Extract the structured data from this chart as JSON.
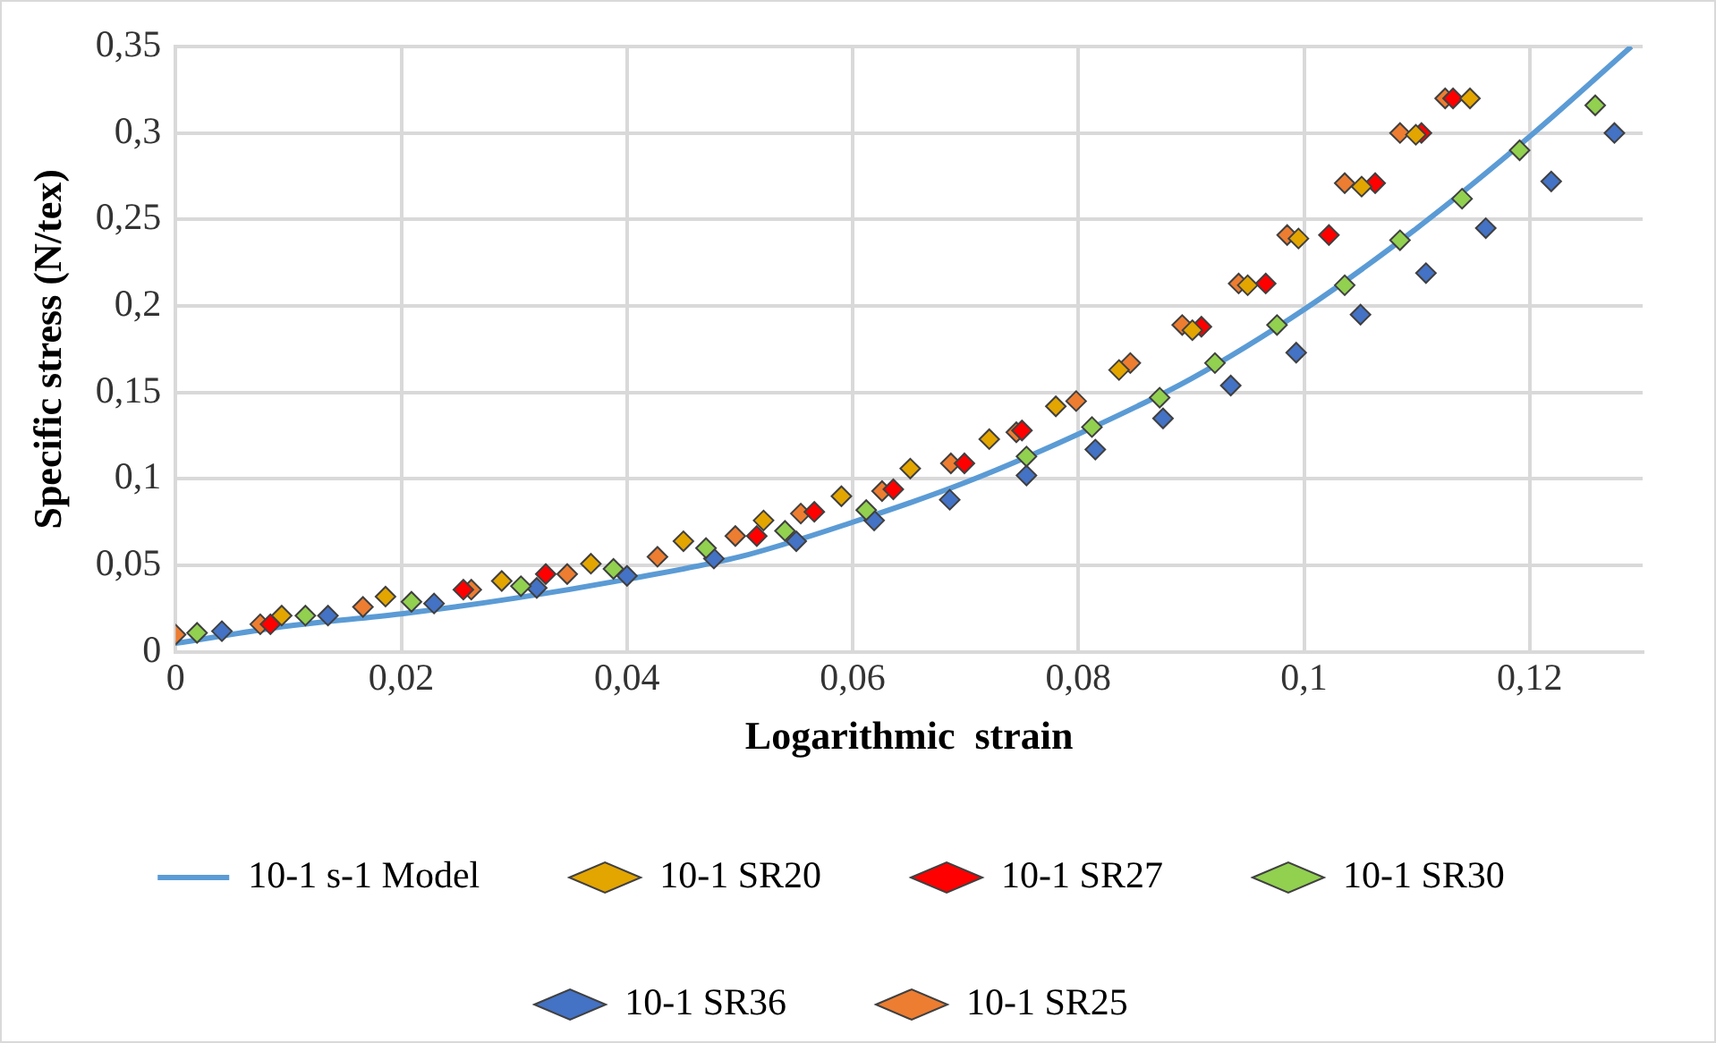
{
  "chart_data": {
    "type": "scatter",
    "xlabel": "Logarithmic  strain",
    "ylabel": "Specific stress (N/tex)",
    "xlim": [
      0,
      0.13
    ],
    "ylim": [
      0,
      0.35
    ],
    "xticks": [
      0,
      {
        "value": 0.02,
        "label": "0,02"
      },
      {
        "value": 0.04,
        "label": "0,04"
      },
      {
        "value": 0.06,
        "label": "0,06"
      },
      {
        "value": 0.08,
        "label": "0,08"
      },
      {
        "value": 0.1,
        "label": "0,1"
      },
      {
        "value": 0.12,
        "label": "0,12"
      }
    ],
    "yticks": [
      0,
      {
        "value": 0.05,
        "label": "0,05"
      },
      {
        "value": 0.1,
        "label": "0,1"
      },
      {
        "value": 0.15,
        "label": "0,15"
      },
      {
        "value": 0.2,
        "label": "0,2"
      },
      {
        "value": 0.25,
        "label": "0,25"
      },
      {
        "value": 0.3,
        "label": "0,3"
      },
      {
        "value": 0.35,
        "label": "0,35"
      }
    ],
    "grid": true,
    "legend": "bottom",
    "marker": "diamond",
    "series": [
      {
        "name": "10-1 s-1 Model",
        "type": "line",
        "marker": "none",
        "line_style": "solid",
        "color": "#5b9bd5",
        "x": [
          0,
          0.01,
          0.02,
          0.03,
          0.04,
          0.05,
          0.06,
          0.07,
          0.08,
          0.09,
          0.1,
          0.11,
          0.12,
          0.129
        ],
        "values": [
          0.005,
          0.015,
          0.022,
          0.031,
          0.042,
          0.055,
          0.075,
          0.098,
          0.126,
          0.158,
          0.198,
          0.245,
          0.298,
          0.35
        ]
      },
      {
        "name": "10-1 SR20",
        "color": "#e3a500",
        "x": [
          0.0094,
          0.0186,
          0.0289,
          0.0368,
          0.045,
          0.0521,
          0.059,
          0.0651,
          0.0721,
          0.078,
          0.0836,
          0.0901,
          0.095,
          0.0995,
          0.1051,
          0.1099,
          0.1147
        ],
        "values": [
          0.021,
          0.032,
          0.041,
          0.051,
          0.064,
          0.076,
          0.09,
          0.106,
          0.123,
          0.142,
          0.163,
          0.186,
          0.212,
          0.239,
          0.269,
          0.299,
          0.32
        ]
      },
      {
        "name": "10-1 SR27",
        "color": "#ff0000",
        "x": [
          0.0084,
          0.0255,
          0.0328,
          0.0515,
          0.0566,
          0.0636,
          0.0699,
          0.075,
          0.0909,
          0.0966,
          0.1022,
          0.1063,
          0.1104,
          0.1132
        ],
        "values": [
          0.016,
          0.036,
          0.045,
          0.067,
          0.081,
          0.094,
          0.109,
          0.128,
          0.188,
          0.213,
          0.241,
          0.271,
          0.3,
          0.32
        ]
      },
      {
        "name": "10-1 SR30",
        "color": "#92d050",
        "x": [
          0.0019,
          0.0115,
          0.0209,
          0.0306,
          0.0388,
          0.047,
          0.054,
          0.0612,
          0.0754,
          0.0812,
          0.0872,
          0.0921,
          0.0976,
          0.1036,
          0.1085,
          0.114,
          0.1191,
          0.1258
        ],
        "values": [
          0.011,
          0.021,
          0.029,
          0.038,
          0.048,
          0.06,
          0.07,
          0.082,
          0.113,
          0.13,
          0.147,
          0.167,
          0.189,
          0.212,
          0.238,
          0.262,
          0.29,
          0.316
        ]
      },
      {
        "name": "10-1 SR36",
        "color": "#4472c4",
        "x": [
          0.0041,
          0.0135,
          0.0229,
          0.032,
          0.04,
          0.0477,
          0.055,
          0.0619,
          0.0686,
          0.0754,
          0.0815,
          0.0875,
          0.0935,
          0.0993,
          0.105,
          0.1108,
          0.1161,
          0.1219,
          0.1275
        ],
        "values": [
          0.012,
          0.021,
          0.028,
          0.037,
          0.044,
          0.054,
          0.064,
          0.076,
          0.088,
          0.102,
          0.117,
          0.135,
          0.154,
          0.173,
          0.195,
          0.219,
          0.245,
          0.272,
          0.3
        ]
      },
      {
        "name": "10-1 SR25",
        "color": "#ed7d31",
        "x": [
          0,
          0.0075,
          0.0166,
          0.0262,
          0.0347,
          0.0427,
          0.0496,
          0.0554,
          0.0626,
          0.0687,
          0.0745,
          0.0798,
          0.0846,
          0.0892,
          0.0942,
          0.0985,
          0.1036,
          0.1085,
          0.1125
        ],
        "values": [
          0.01,
          0.016,
          0.026,
          0.036,
          0.045,
          0.055,
          0.067,
          0.08,
          0.093,
          0.109,
          0.127,
          0.145,
          0.167,
          0.189,
          0.213,
          0.241,
          0.271,
          0.3,
          0.32
        ]
      }
    ]
  }
}
